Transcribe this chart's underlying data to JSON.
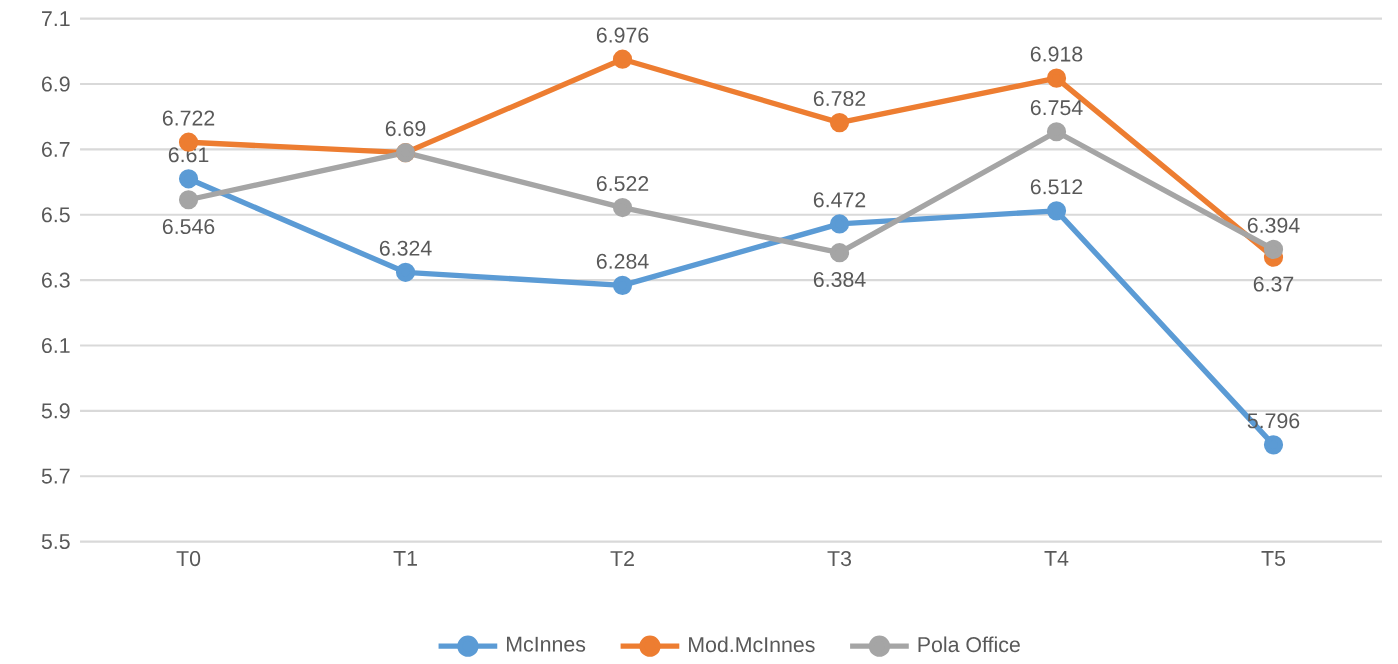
{
  "chart_data": {
    "type": "line",
    "categories": [
      "T0",
      "T1",
      "T2",
      "T3",
      "T4",
      "T5"
    ],
    "series": [
      {
        "name": "McInnes",
        "color": "#5b9bd5",
        "values": [
          6.61,
          6.324,
          6.284,
          6.472,
          6.512,
          5.796
        ],
        "value_labels": [
          "6.61",
          "6.324",
          "6.284",
          "6.472",
          "6.512",
          "5.796"
        ]
      },
      {
        "name": "Mod.McInnes",
        "color": "#ed7d31",
        "values": [
          6.722,
          6.69,
          6.976,
          6.782,
          6.918,
          6.37
        ],
        "value_labels": [
          "6.722",
          "6.69",
          "6.976",
          "6.782",
          "6.918",
          "6.37"
        ]
      },
      {
        "name": "Pola Office",
        "color": "#a5a5a5",
        "values": [
          6.546,
          6.69,
          6.522,
          6.384,
          6.754,
          6.394
        ],
        "value_labels": [
          "6.546",
          null,
          "6.522",
          "6.384",
          "6.754",
          "6.394"
        ]
      }
    ],
    "ylim": [
      5.5,
      7.1
    ],
    "yticks": [
      5.5,
      5.7,
      5.9,
      6.1,
      6.3,
      6.5,
      6.7,
      6.9,
      7.1
    ],
    "grid": "y",
    "legend": "bottom",
    "marker": "circle",
    "line_style": "solid"
  }
}
